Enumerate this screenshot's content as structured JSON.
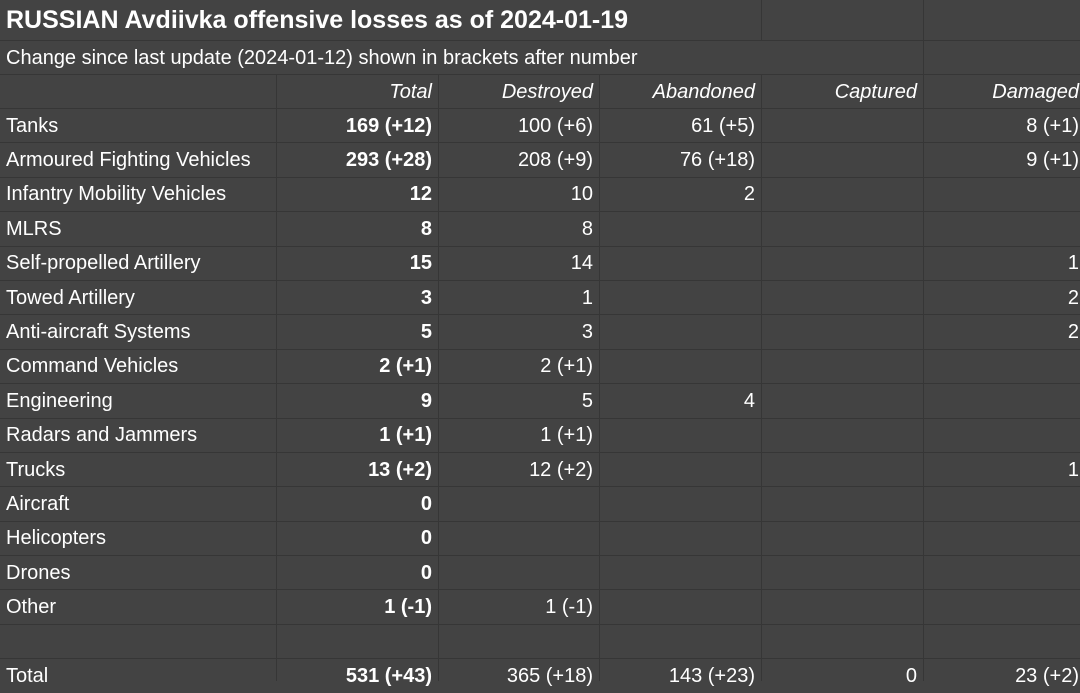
{
  "title": "RUSSIAN Avdiivka offensive losses as of 2024-01-19",
  "subtitle": "Change since last update (2024-01-12) shown in brackets after number",
  "columns": [
    "Total",
    "Destroyed",
    "Abandoned",
    "Captured",
    "Damaged"
  ],
  "rows": [
    {
      "label": "Tanks",
      "cells": [
        "169 (+12)",
        "100 (+6)",
        "61 (+5)",
        "",
        "8 (+1)"
      ]
    },
    {
      "label": "Armoured Fighting Vehicles",
      "cells": [
        "293 (+28)",
        "208 (+9)",
        "76 (+18)",
        "",
        "9 (+1)"
      ]
    },
    {
      "label": "Infantry Mobility Vehicles",
      "cells": [
        "12",
        "10",
        "2",
        "",
        ""
      ]
    },
    {
      "label": "MLRS",
      "cells": [
        "8",
        "8",
        "",
        "",
        ""
      ]
    },
    {
      "label": "Self-propelled Artillery",
      "cells": [
        "15",
        "14",
        "",
        "",
        "1"
      ]
    },
    {
      "label": "Towed Artillery",
      "cells": [
        "3",
        "1",
        "",
        "",
        "2"
      ]
    },
    {
      "label": "Anti-aircraft Systems",
      "cells": [
        "5",
        "3",
        "",
        "",
        "2"
      ]
    },
    {
      "label": "Command Vehicles",
      "cells": [
        "2 (+1)",
        "2 (+1)",
        "",
        "",
        ""
      ]
    },
    {
      "label": "Engineering",
      "cells": [
        "9",
        "5",
        "4",
        "",
        ""
      ]
    },
    {
      "label": "Radars and Jammers",
      "cells": [
        "1 (+1)",
        "1 (+1)",
        "",
        "",
        ""
      ]
    },
    {
      "label": "Trucks",
      "cells": [
        "13 (+2)",
        "12 (+2)",
        "",
        "",
        "1"
      ]
    },
    {
      "label": "Aircraft",
      "cells": [
        "0",
        "",
        "",
        "",
        ""
      ]
    },
    {
      "label": "Helicopters",
      "cells": [
        "0",
        "",
        "",
        "",
        ""
      ]
    },
    {
      "label": "Drones",
      "cells": [
        "0",
        "",
        "",
        "",
        ""
      ]
    },
    {
      "label": "Other",
      "cells": [
        "1 (-1)",
        "1 (-1)",
        "",
        "",
        ""
      ]
    }
  ],
  "total": {
    "label": "Total",
    "cells": [
      "531 (+43)",
      "365 (+18)",
      "143 (+23)",
      "0",
      "23 (+2)"
    ]
  },
  "chart_data": {
    "type": "table",
    "title": "RUSSIAN Avdiivka offensive losses as of 2024-01-19",
    "subtitle": "Change since last update (2024-01-12) shown in brackets after number",
    "columns": [
      "Total",
      "Destroyed",
      "Abandoned",
      "Captured",
      "Damaged"
    ],
    "categories": [
      "Tanks",
      "Armoured Fighting Vehicles",
      "Infantry Mobility Vehicles",
      "MLRS",
      "Self-propelled Artillery",
      "Towed Artillery",
      "Anti-aircraft Systems",
      "Command Vehicles",
      "Engineering",
      "Radars and Jammers",
      "Trucks",
      "Aircraft",
      "Helicopters",
      "Drones",
      "Other",
      "Total"
    ],
    "series": [
      {
        "name": "Total",
        "values": [
          169,
          293,
          12,
          8,
          15,
          3,
          5,
          2,
          9,
          1,
          13,
          0,
          0,
          0,
          1,
          531
        ],
        "changes": [
          12,
          28,
          0,
          0,
          0,
          0,
          0,
          1,
          0,
          1,
          2,
          0,
          0,
          0,
          -1,
          43
        ]
      },
      {
        "name": "Destroyed",
        "values": [
          100,
          208,
          10,
          8,
          14,
          1,
          3,
          2,
          5,
          1,
          12,
          null,
          null,
          null,
          1,
          365
        ],
        "changes": [
          6,
          9,
          0,
          0,
          0,
          0,
          0,
          1,
          0,
          1,
          2,
          null,
          null,
          null,
          -1,
          18
        ]
      },
      {
        "name": "Abandoned",
        "values": [
          61,
          76,
          2,
          null,
          null,
          null,
          null,
          null,
          4,
          null,
          null,
          null,
          null,
          null,
          null,
          143
        ],
        "changes": [
          5,
          18,
          0,
          null,
          null,
          null,
          null,
          null,
          0,
          null,
          null,
          null,
          null,
          null,
          null,
          23
        ]
      },
      {
        "name": "Captured",
        "values": [
          null,
          null,
          null,
          null,
          null,
          null,
          null,
          null,
          null,
          null,
          null,
          null,
          null,
          null,
          null,
          0
        ],
        "changes": [
          null,
          null,
          null,
          null,
          null,
          null,
          null,
          null,
          null,
          null,
          null,
          null,
          null,
          null,
          null,
          0
        ]
      },
      {
        "name": "Damaged",
        "values": [
          8,
          9,
          null,
          null,
          1,
          2,
          2,
          null,
          null,
          null,
          1,
          null,
          null,
          null,
          null,
          23
        ],
        "changes": [
          1,
          1,
          null,
          null,
          0,
          0,
          0,
          null,
          null,
          null,
          0,
          null,
          null,
          null,
          null,
          2
        ]
      }
    ]
  }
}
